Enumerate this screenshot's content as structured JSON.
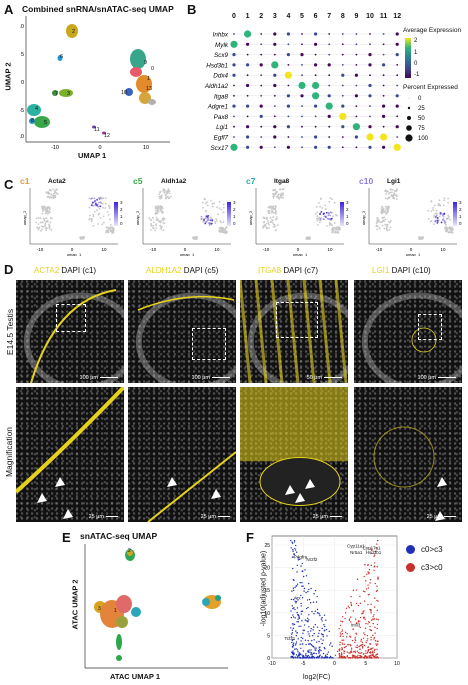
{
  "panelA": {
    "letter": "A",
    "title": "Combined snRNA/snATAC-seq UMAP",
    "xlabel": "UMAP 1",
    "ylabel": "UMAP 2",
    "yticks": [
      "10",
      "5",
      "0",
      "-5",
      "-10"
    ],
    "xticks": [
      "-10",
      "0",
      "10"
    ],
    "clusters": [
      "0",
      "1",
      "2",
      "3",
      "4",
      "5",
      "6",
      "7",
      "8",
      "9",
      "10",
      "11",
      "12",
      "13"
    ]
  },
  "panelB": {
    "letter": "B",
    "clusters": [
      "0",
      "1",
      "2",
      "3",
      "4",
      "5",
      "6",
      "7",
      "8",
      "9",
      "10",
      "11",
      "12"
    ],
    "genes": [
      "Inhbx",
      "Mylk",
      "Scx9",
      "Hsd3b1",
      "Ddx4",
      "Aldh1a2",
      "Itga8",
      "Adgre1",
      "Pax8",
      "Lgi1",
      "Egfl7",
      "Scx17"
    ],
    "legend_expr_title": "Average Expression",
    "expr_ticks": [
      "2",
      "1",
      "0",
      "-1"
    ],
    "legend_pct_title": "Percent Expressed",
    "pct_ticks": [
      "0",
      "25",
      "50",
      "75",
      "100"
    ]
  },
  "panelC": {
    "letter": "C",
    "plots": [
      {
        "cluster": "c1",
        "gene": "Acta2",
        "color": "#e89a2c"
      },
      {
        "cluster": "c5",
        "gene": "Aldh1a2",
        "color": "#35a844"
      },
      {
        "cluster": "c7",
        "gene": "Itga8",
        "color": "#2aa6b8"
      },
      {
        "cluster": "c10",
        "gene": "Lgi1",
        "color": "#8a7fd6"
      }
    ],
    "axis_x": "umap_1",
    "axis_y": "umap_2",
    "xticks": [
      "-10",
      "0",
      "10"
    ],
    "cbar_ticks": [
      "3",
      "2",
      "1",
      "0"
    ]
  },
  "panelD": {
    "letter": "D",
    "headers": [
      {
        "gene": "ACTA2",
        "rest": " DAPI (c1)"
      },
      {
        "gene": "ALDH1A2",
        "rest": " DAPI (c5)"
      },
      {
        "gene": "ITGA8",
        "rest": " DAPI (c7)"
      },
      {
        "gene": "LGI1",
        "rest": " DAPI (c10)"
      }
    ],
    "row1_label": "E14.5 Testis",
    "row2_label": "Magnification",
    "scale_top": [
      "100 μm",
      "100 μm",
      "50 μm",
      "100 μm"
    ],
    "scale_bottom": [
      "25 μm",
      "25 μm",
      "25 μm",
      "25 μm"
    ],
    "marker_color": "#e6d21a"
  },
  "panelE": {
    "letter": "E",
    "title": "snATAC-seq UMAP",
    "xlabel": "ATAC UMAP 1",
    "ylabel": "ATAC UMAP 2"
  },
  "panelF": {
    "letter": "F",
    "xlabel": "log2(FC)",
    "ylabel": "-log10(adjusted p-value)",
    "xticks": [
      "-10",
      "-5",
      "0",
      "5",
      "10"
    ],
    "yticks": [
      "0",
      "5",
      "10",
      "15",
      "20",
      "25"
    ],
    "legend": [
      {
        "label": "c0>c3",
        "color": "#1f2fb8"
      },
      {
        "label": "c3>c0",
        "color": "#c8302c"
      }
    ],
    "genes_left": [
      "Pdgfra",
      "Nr2f2",
      "Arx",
      "Tcf21"
    ],
    "genes_right": [
      "Cyp11a1",
      "Cyp17a1",
      "Nr5a1",
      "Hsd3b1",
      "Insl3"
    ]
  }
}
